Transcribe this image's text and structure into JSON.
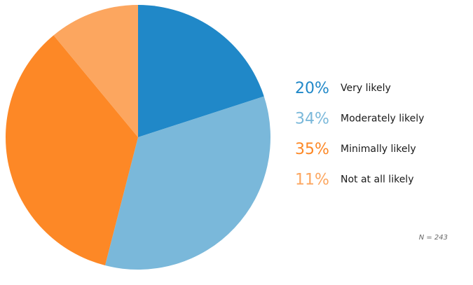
{
  "chart_data": {
    "type": "pie",
    "slices": [
      {
        "label": "Very likely",
        "value": 20,
        "value_label": "20%",
        "color": "#2088c8"
      },
      {
        "label": "Moderately likely",
        "value": 34,
        "value_label": "34%",
        "color": "#7ab8da"
      },
      {
        "label": "Minimally likely",
        "value": 35,
        "value_label": "35%",
        "color": "#fd8826"
      },
      {
        "label": "Not at all likely",
        "value": 11,
        "value_label": "11%",
        "color": "#fca65f"
      }
    ],
    "start_position": "top",
    "direction": "clockwise",
    "legend_placement": "right",
    "note": "N = 243"
  }
}
